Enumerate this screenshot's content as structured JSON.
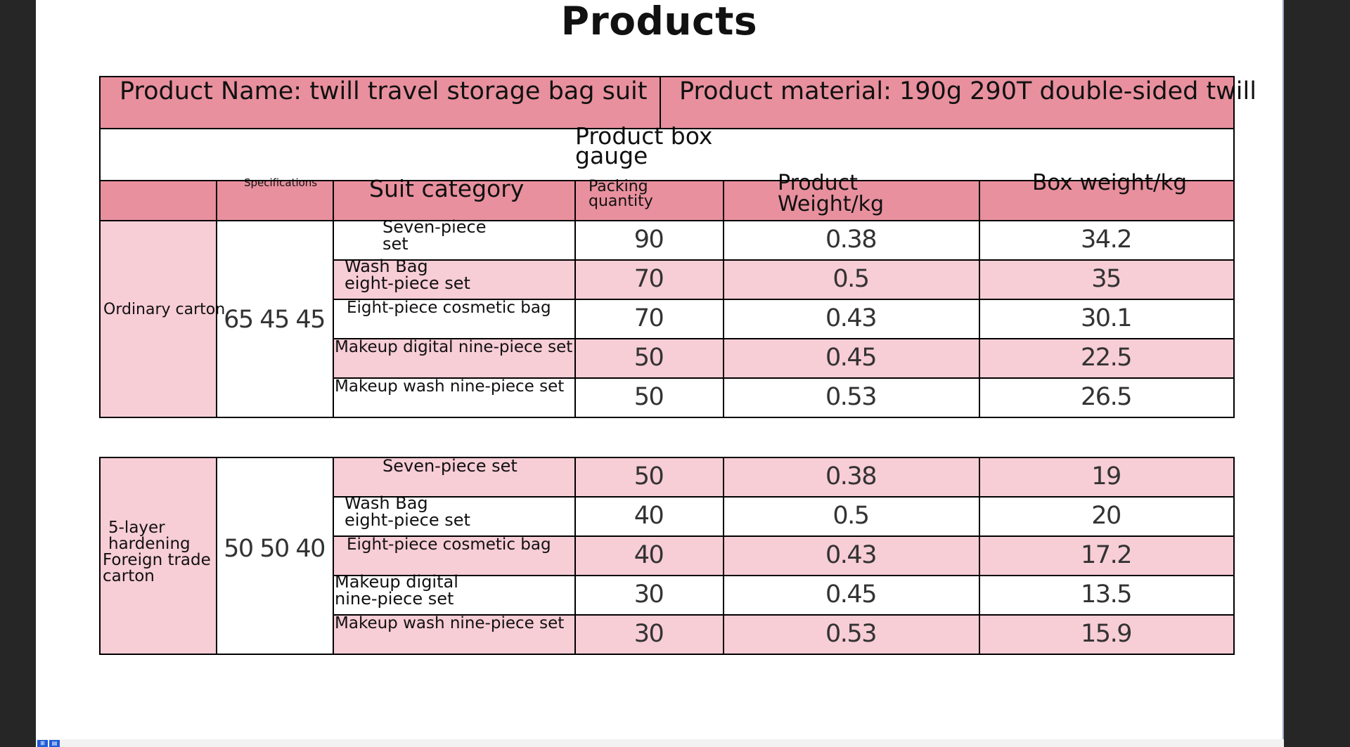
{
  "title": "Products",
  "header": {
    "product_name": "Product Name: twill travel storage bag suit",
    "product_material": "Product material: 190g 290T double-sided twill"
  },
  "box_gauge": [
    "Product box",
    "gauge"
  ],
  "columns": {
    "specifications": "Specifications",
    "suit_category": "Suit category",
    "packing_quantity": [
      "Packing",
      "quantity"
    ],
    "product_weight": [
      "Product",
      "Weight/kg"
    ],
    "box_weight": "Box weight/kg"
  },
  "groups": [
    {
      "carton": [
        "Ordinary carton"
      ],
      "spec": "65 45 45",
      "rows": [
        {
          "category": [
            "Seven-piece",
            "set"
          ],
          "qty": "90",
          "weight": "0.38",
          "box_weight": "34.2"
        },
        {
          "category": [
            "Wash Bag",
            "eight-piece set"
          ],
          "qty": "70",
          "weight": "0.5",
          "box_weight": "35"
        },
        {
          "category": [
            "Eight-piece cosmetic bag"
          ],
          "qty": "70",
          "weight": "0.43",
          "box_weight": "30.1"
        },
        {
          "category": [
            "Makeup digital nine-piece set"
          ],
          "qty": "50",
          "weight": "0.45",
          "box_weight": "22.5"
        },
        {
          "category": [
            "Makeup wash nine-piece set"
          ],
          "qty": "50",
          "weight": "0.53",
          "box_weight": "26.5"
        }
      ]
    },
    {
      "carton": [
        "5-layer",
        "hardening",
        "Foreign trade",
        "carton"
      ],
      "spec": "50 50 40",
      "rows": [
        {
          "category": [
            "Seven-piece set"
          ],
          "qty": "50",
          "weight": "0.38",
          "box_weight": "19"
        },
        {
          "category": [
            "Wash Bag",
            "eight-piece set"
          ],
          "qty": "40",
          "weight": "0.5",
          "box_weight": "20"
        },
        {
          "category": [
            "Eight-piece cosmetic bag"
          ],
          "qty": "40",
          "weight": "0.43",
          "box_weight": "17.2"
        },
        {
          "category": [
            "Makeup digital",
            "nine-piece set"
          ],
          "qty": "30",
          "weight": "0.45",
          "box_weight": "13.5"
        },
        {
          "category": [
            "Makeup wash nine-piece set"
          ],
          "qty": "30",
          "weight": "0.53",
          "box_weight": "15.9"
        }
      ]
    }
  ],
  "colors": {
    "header_pink": "#e8909e",
    "row_pink": "#f7cdd6",
    "page_bg": "#262626"
  }
}
